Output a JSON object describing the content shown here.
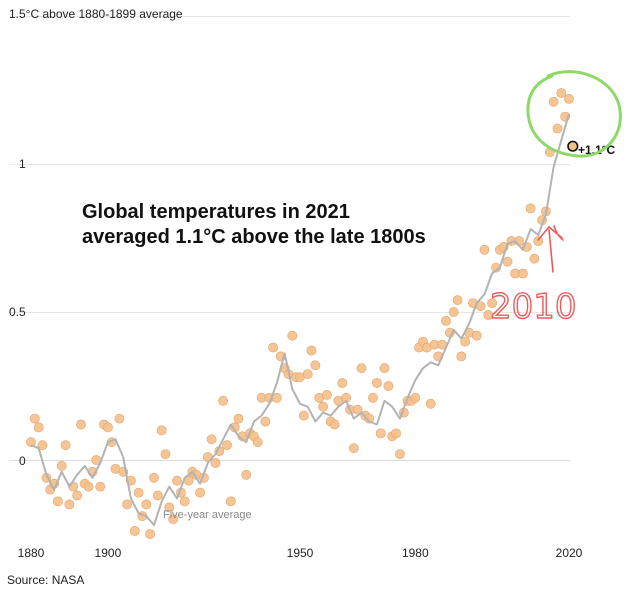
{
  "chart_data": {
    "type": "scatter",
    "title": "Global temperatures in 2021 averaged 1.1°C above the late 1800s",
    "title_lines": [
      "Global temperatures in 2021",
      "averaged 1.1°C above the late 1800s"
    ],
    "ylabel_top": "1.5°C above 1880-1899 average",
    "xlim": [
      1879,
      2021
    ],
    "ylim": [
      -0.25,
      1.5
    ],
    "x_ticks": [
      1880,
      1900,
      1950,
      1980,
      2020
    ],
    "y_ticks": [
      {
        "value": 1.5,
        "label": "1.5°C above 1880-1899 average"
      },
      {
        "value": 1,
        "label": "1"
      },
      {
        "value": 0.5,
        "label": "0.5"
      },
      {
        "value": 0,
        "label": "0"
      }
    ],
    "grid": "horizontal",
    "dot_color": "#f5c08c",
    "dot_edge": "#e3a468",
    "line_color": "#b3b3b3",
    "series": [
      {
        "kind": "points",
        "x": [
          1880,
          1881,
          1882,
          1883,
          1884,
          1885,
          1886,
          1887,
          1888,
          1889,
          1890,
          1891,
          1892,
          1893,
          1894,
          1895,
          1896,
          1897,
          1898,
          1899,
          1900,
          1901,
          1902,
          1903,
          1904,
          1905,
          1906,
          1907,
          1908,
          1909,
          1910,
          1911,
          1912,
          1913,
          1914,
          1915,
          1916,
          1917,
          1918,
          1919,
          1920,
          1921,
          1922,
          1923,
          1924,
          1925,
          1926,
          1927,
          1928,
          1929,
          1930,
          1931,
          1932,
          1933,
          1934,
          1935,
          1936,
          1937,
          1938,
          1939,
          1940,
          1941,
          1942,
          1943,
          1944,
          1945,
          1946,
          1947,
          1948,
          1949,
          1950,
          1951,
          1952,
          1953,
          1954,
          1955,
          1956,
          1957,
          1958,
          1959,
          1960,
          1961,
          1962,
          1963,
          1964,
          1965,
          1966,
          1967,
          1968,
          1969,
          1970,
          1971,
          1972,
          1973,
          1974,
          1975,
          1976,
          1977,
          1978,
          1979,
          1980,
          1981,
          1982,
          1983,
          1984,
          1985,
          1986,
          1987,
          1988,
          1989,
          1990,
          1991,
          1992,
          1993,
          1994,
          1995,
          1996,
          1997,
          1998,
          1999,
          2000,
          2001,
          2002,
          2003,
          2004,
          2005,
          2006,
          2007,
          2008,
          2009,
          2010,
          2011,
          2012,
          2013,
          2014,
          2015,
          2016,
          2017,
          2018,
          2019,
          2020,
          2021
        ],
        "values": [
          0.06,
          0.14,
          0.11,
          0.05,
          -0.06,
          -0.1,
          -0.08,
          -0.14,
          -0.02,
          0.05,
          -0.15,
          -0.09,
          -0.12,
          0.12,
          -0.08,
          -0.09,
          -0.04,
          0,
          -0.09,
          0.12,
          0.11,
          0.06,
          -0.03,
          0.14,
          -0.04,
          -0.15,
          -0.07,
          -0.24,
          -0.11,
          -0.19,
          -0.15,
          -0.25,
          -0.06,
          -0.12,
          0.1,
          0.02,
          -0.16,
          -0.2,
          -0.07,
          -0.11,
          -0.14,
          -0.07,
          -0.04,
          -0.05,
          -0.11,
          -0.06,
          0.01,
          0.07,
          -0.01,
          0.03,
          0.2,
          0.05,
          -0.14,
          0.11,
          0.14,
          0.08,
          -0.05,
          0.09,
          0.08,
          0.06,
          0.21,
          0.13,
          0.21,
          0.38,
          0.21,
          0.35,
          0.31,
          0.29,
          0.42,
          0.28,
          0.28,
          0.15,
          0.29,
          0.37,
          0.32,
          0.21,
          0.18,
          0.22,
          0.13,
          0.12,
          0.2,
          0.26,
          0.21,
          0.17,
          0.04,
          0.17,
          0.31,
          0.15,
          0.14,
          0.21,
          0.26,
          0.09,
          0.31,
          0.25,
          0.08,
          0.09,
          0.02,
          0.16,
          0.2,
          0.2,
          0.21,
          0.38,
          0.4,
          0.38,
          0.19,
          0.39,
          0.35,
          0.39,
          0.47,
          0.43,
          0.5,
          0.54,
          0.35,
          0.4,
          0.43,
          0.53,
          0.42,
          0.52,
          0.71,
          0.49,
          0.53,
          0.65,
          0.71,
          0.72,
          0.67,
          0.74,
          0.63,
          0.74,
          0.63,
          0.72,
          0.85,
          0.68,
          0.74,
          0.81,
          0.84,
          1.04,
          1.21,
          1.12,
          1.24,
          1.16,
          1.22,
          1.06
        ]
      },
      {
        "kind": "line",
        "name": "Five-year average",
        "x": [
          1880,
          1882,
          1884,
          1886,
          1888,
          1890,
          1892,
          1894,
          1896,
          1898,
          1900,
          1902,
          1904,
          1906,
          1908,
          1910,
          1912,
          1914,
          1916,
          1918,
          1920,
          1922,
          1924,
          1926,
          1928,
          1930,
          1932,
          1934,
          1936,
          1938,
          1940,
          1942,
          1944,
          1946,
          1948,
          1950,
          1952,
          1954,
          1956,
          1958,
          1960,
          1962,
          1964,
          1966,
          1968,
          1970,
          1972,
          1974,
          1976,
          1978,
          1980,
          1982,
          1984,
          1986,
          1988,
          1990,
          1992,
          1994,
          1996,
          1998,
          2000,
          2002,
          2004,
          2006,
          2008,
          2010,
          2012,
          2014,
          2016,
          2018,
          2020
        ],
        "values": [
          0.05,
          0.04,
          -0.05,
          -0.1,
          -0.04,
          -0.09,
          -0.05,
          -0.02,
          -0.06,
          -0.01,
          0.06,
          0.07,
          0.01,
          -0.13,
          -0.18,
          -0.19,
          -0.22,
          -0.14,
          -0.09,
          -0.13,
          -0.06,
          -0.04,
          -0.08,
          -0.01,
          0.02,
          0.07,
          0.12,
          0.08,
          0.06,
          0.13,
          0.15,
          0.19,
          0.26,
          0.36,
          0.24,
          0.19,
          0.18,
          0.13,
          0.16,
          0.15,
          0.18,
          0.2,
          0.14,
          0.16,
          0.13,
          0.12,
          0.2,
          0.18,
          0.14,
          0.21,
          0.27,
          0.31,
          0.33,
          0.32,
          0.38,
          0.44,
          0.41,
          0.46,
          0.53,
          0.56,
          0.63,
          0.65,
          0.73,
          0.74,
          0.71,
          0.78,
          0.76,
          0.83,
          0.99,
          1.08,
          1.17
        ]
      }
    ],
    "annotations": {
      "five_year": "Five-year average",
      "callout": "+1.1°C",
      "handwritten": "2010",
      "circled_year_range": [
        2014,
        2021
      ]
    }
  },
  "source": "Source: NASA"
}
